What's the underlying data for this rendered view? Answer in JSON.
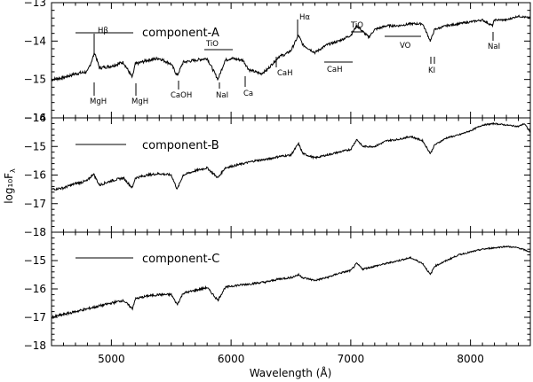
{
  "chart_data": {
    "type": "line",
    "xlabel": "Wavelength (Å)",
    "ylabel": "log₁₀F",
    "ylabel_sub": "λ",
    "xlim": [
      4500,
      8500
    ],
    "x_ticks": [
      5000,
      6000,
      7000,
      8000
    ],
    "x_tick_labels": [
      "5000",
      "6000",
      "7000",
      "8000"
    ],
    "panels": [
      {
        "name": "component-A",
        "ylim": [
          -16,
          -13
        ],
        "y_ticks": [
          -16,
          -15,
          -14,
          -13
        ],
        "y_tick_labels": [
          "−16",
          "−15",
          "−14",
          "−13"
        ],
        "series": [
          {
            "name": "component-A",
            "x": [
              4500,
              4600,
              4700,
              4800,
              4861,
              4900,
              5000,
              5100,
              5175,
              5200,
              5300,
              5400,
              5500,
              5550,
              5600,
              5700,
              5800,
              5890,
              5950,
              6000,
              6100,
              6150,
              6250,
              6300,
              6400,
              6450,
              6500,
              6563,
              6600,
              6700,
              6800,
              6900,
              7000,
              7050,
              7100,
              7150,
              7200,
              7300,
              7400,
              7500,
              7600,
              7665,
              7700,
              7800,
              7900,
              8000,
              8100,
              8183,
              8200,
              8300,
              8400,
              8500
            ],
            "y": [
              -15.0,
              -14.95,
              -14.85,
              -14.8,
              -14.3,
              -14.7,
              -14.65,
              -14.55,
              -14.95,
              -14.6,
              -14.5,
              -14.45,
              -14.6,
              -14.9,
              -14.55,
              -14.5,
              -14.45,
              -15.0,
              -14.5,
              -14.45,
              -14.5,
              -14.75,
              -14.85,
              -14.75,
              -14.4,
              -14.35,
              -14.25,
              -13.85,
              -14.1,
              -14.3,
              -14.1,
              -14.0,
              -13.85,
              -13.6,
              -13.75,
              -13.9,
              -13.7,
              -13.6,
              -13.6,
              -13.55,
              -13.55,
              -14.0,
              -13.7,
              -13.6,
              -13.55,
              -13.5,
              -13.45,
              -13.6,
              -13.45,
              -13.45,
              -13.35,
              -13.4
            ]
          }
        ]
      },
      {
        "name": "component-B",
        "ylim": [
          -18,
          -14
        ],
        "y_ticks": [
          -18,
          -17,
          -16,
          -15,
          -14
        ],
        "y_tick_labels": [
          "−18",
          "−17",
          "−16",
          "−15",
          "−14"
        ],
        "series": [
          {
            "name": "component-B",
            "x": [
              4500,
              4600,
              4700,
              4800,
              4850,
              4900,
              5000,
              5100,
              5175,
              5200,
              5300,
              5400,
              5500,
              5550,
              5600,
              5700,
              5800,
              5890,
              5950,
              6000,
              6100,
              6200,
              6300,
              6400,
              6500,
              6563,
              6600,
              6700,
              6800,
              6900,
              7000,
              7050,
              7100,
              7200,
              7300,
              7400,
              7500,
              7600,
              7665,
              7700,
              7800,
              7900,
              8000,
              8100,
              8200,
              8300,
              8400,
              8450,
              8500
            ],
            "y": [
              -16.5,
              -16.45,
              -16.3,
              -16.2,
              -15.95,
              -16.35,
              -16.2,
              -16.1,
              -16.45,
              -16.1,
              -16.0,
              -15.95,
              -16.0,
              -16.5,
              -16.0,
              -15.85,
              -15.75,
              -16.1,
              -15.75,
              -15.7,
              -15.6,
              -15.5,
              -15.45,
              -15.35,
              -15.3,
              -14.9,
              -15.25,
              -15.4,
              -15.3,
              -15.2,
              -15.1,
              -14.75,
              -15.0,
              -15.0,
              -14.8,
              -14.75,
              -14.65,
              -14.8,
              -15.25,
              -14.95,
              -14.7,
              -14.6,
              -14.45,
              -14.25,
              -14.2,
              -14.25,
              -14.3,
              -14.2,
              -14.5
            ]
          }
        ]
      },
      {
        "name": "component-C",
        "ylim": [
          -18,
          -14
        ],
        "y_ticks": [
          -18,
          -17,
          -16,
          -15
        ],
        "y_tick_labels": [
          "−18",
          "−17",
          "−16",
          "−15"
        ],
        "series": [
          {
            "name": "component-C",
            "x": [
              4500,
              4600,
              4700,
              4800,
              4900,
              5000,
              5100,
              5175,
              5200,
              5300,
              5400,
              5500,
              5550,
              5600,
              5700,
              5800,
              5890,
              5950,
              6000,
              6100,
              6200,
              6300,
              6400,
              6500,
              6563,
              6600,
              6700,
              6800,
              6900,
              7000,
              7050,
              7100,
              7200,
              7300,
              7400,
              7500,
              7600,
              7665,
              7700,
              7800,
              7900,
              8000,
              8100,
              8200,
              8300,
              8400,
              8500
            ],
            "y": [
              -17.0,
              -16.9,
              -16.8,
              -16.7,
              -16.6,
              -16.5,
              -16.4,
              -16.7,
              -16.35,
              -16.25,
              -16.2,
              -16.2,
              -16.55,
              -16.15,
              -16.05,
              -15.95,
              -16.4,
              -15.95,
              -15.9,
              -15.85,
              -15.8,
              -15.75,
              -15.65,
              -15.6,
              -15.5,
              -15.6,
              -15.7,
              -15.6,
              -15.45,
              -15.35,
              -15.1,
              -15.3,
              -15.2,
              -15.1,
              -15.0,
              -14.9,
              -15.1,
              -15.5,
              -15.2,
              -15.0,
              -14.8,
              -14.7,
              -14.6,
              -14.55,
              -14.5,
              -14.55,
              -14.7
            ]
          }
        ]
      }
    ],
    "annotations": {
      "features": [
        {
          "label": "Hβ",
          "x": 4861
        },
        {
          "label": "MgH",
          "x": 4830
        },
        {
          "label": "MgH",
          "x": 5175
        },
        {
          "label": "TiO",
          "x": 5900
        },
        {
          "label": "CaOH",
          "x": 5540
        },
        {
          "label": "NaI",
          "x": 5893
        },
        {
          "label": "Ca",
          "x": 6162
        },
        {
          "label": "CaH",
          "x": 6385
        },
        {
          "label": "Hα",
          "x": 6563
        },
        {
          "label": "TiO",
          "x": 7050
        },
        {
          "label": "CaH",
          "x": 6830
        },
        {
          "label": "VO",
          "x": 7440
        },
        {
          "label": "KI",
          "x": 7680
        },
        {
          "label": "NaI",
          "x": 8190
        }
      ]
    }
  }
}
